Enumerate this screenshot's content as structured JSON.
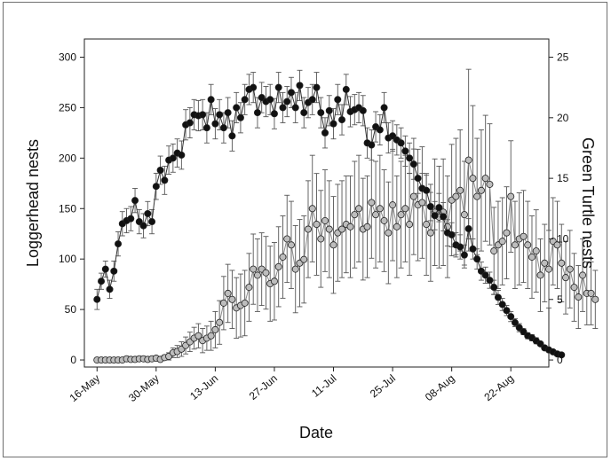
{
  "chart_data": {
    "type": "scatter",
    "xlabel": "Date",
    "ylabel_left": "Loggerhead nests",
    "ylabel_right": "Green Turtle nests",
    "x_ticks": [
      "16-May",
      "30-May",
      "13-Jun",
      "27-Jun",
      "11-Jul",
      "25-Jul",
      "08-Aug",
      "22-Aug"
    ],
    "y_left_ticks": [
      "0",
      "50",
      "100",
      "150",
      "200",
      "250",
      "300"
    ],
    "y_right_ticks": [
      "0",
      "5",
      "10",
      "15",
      "20",
      "25"
    ],
    "x_range_days_from_16_May": [
      -3,
      107
    ],
    "ylim_left": [
      -7,
      318
    ],
    "ylim_right": [
      -0.58,
      26.5
    ],
    "grid": false,
    "series": [
      {
        "axis": "left",
        "marker_color": "#111111",
        "line_color": "#333333",
        "points": [
          [
            0,
            60,
            10
          ],
          [
            1,
            78,
            8
          ],
          [
            2,
            90,
            8
          ],
          [
            3,
            70,
            9
          ],
          [
            4,
            88,
            10
          ],
          [
            5,
            115,
            12
          ],
          [
            6,
            135,
            12
          ],
          [
            7,
            138,
            12
          ],
          [
            8,
            140,
            12
          ],
          [
            9,
            158,
            12
          ],
          [
            10,
            137,
            12
          ],
          [
            11,
            133,
            12
          ],
          [
            12,
            145,
            12
          ],
          [
            13,
            137,
            12
          ],
          [
            14,
            172,
            13
          ],
          [
            15,
            188,
            14
          ],
          [
            16,
            178,
            14
          ],
          [
            17,
            198,
            14
          ],
          [
            18,
            200,
            14
          ],
          [
            19,
            205,
            14
          ],
          [
            20,
            203,
            14
          ],
          [
            21,
            233,
            15
          ],
          [
            22,
            235,
            15
          ],
          [
            23,
            243,
            15
          ],
          [
            24,
            242,
            15
          ],
          [
            25,
            243,
            15
          ],
          [
            26,
            230,
            15
          ],
          [
            27,
            258,
            15
          ],
          [
            28,
            234,
            15
          ],
          [
            29,
            243,
            15
          ],
          [
            30,
            230,
            15
          ],
          [
            31,
            245,
            15
          ],
          [
            32,
            222,
            15
          ],
          [
            33,
            250,
            15
          ],
          [
            34,
            240,
            15
          ],
          [
            35,
            258,
            15
          ],
          [
            36,
            268,
            15
          ],
          [
            37,
            270,
            15
          ],
          [
            38,
            245,
            15
          ],
          [
            39,
            260,
            15
          ],
          [
            40,
            256,
            15
          ],
          [
            41,
            258,
            15
          ],
          [
            42,
            244,
            15
          ],
          [
            43,
            270,
            15
          ],
          [
            44,
            250,
            15
          ],
          [
            45,
            256,
            15
          ],
          [
            46,
            265,
            15
          ],
          [
            47,
            250,
            15
          ],
          [
            48,
            272,
            15
          ],
          [
            49,
            245,
            15
          ],
          [
            50,
            255,
            15
          ],
          [
            51,
            258,
            15
          ],
          [
            52,
            270,
            15
          ],
          [
            53,
            245,
            15
          ],
          [
            54,
            225,
            15
          ],
          [
            55,
            247,
            15
          ],
          [
            56,
            234,
            15
          ],
          [
            57,
            258,
            15
          ],
          [
            58,
            238,
            15
          ],
          [
            59,
            268,
            15
          ],
          [
            60,
            246,
            15
          ],
          [
            61,
            248,
            15
          ],
          [
            62,
            250,
            15
          ],
          [
            63,
            247,
            15
          ],
          [
            64,
            215,
            15
          ],
          [
            65,
            213,
            15
          ],
          [
            66,
            231,
            15
          ],
          [
            67,
            228,
            15
          ],
          [
            68,
            250,
            15
          ],
          [
            69,
            220,
            15
          ],
          [
            70,
            222,
            15
          ],
          [
            71,
            218,
            15
          ],
          [
            72,
            215,
            15
          ],
          [
            73,
            207,
            15
          ],
          [
            74,
            200,
            15
          ],
          [
            75,
            194,
            15
          ],
          [
            76,
            180,
            15
          ],
          [
            77,
            170,
            15
          ],
          [
            78,
            168,
            15
          ],
          [
            79,
            152,
            14
          ],
          [
            80,
            143,
            14
          ],
          [
            81,
            151,
            14
          ],
          [
            82,
            142,
            14
          ],
          [
            83,
            126,
            13
          ],
          [
            84,
            124,
            12
          ],
          [
            85,
            114,
            12
          ],
          [
            86,
            112,
            12
          ],
          [
            87,
            104,
            10
          ],
          [
            88,
            130,
            10
          ],
          [
            89,
            110,
            10
          ],
          [
            90,
            100,
            10
          ],
          [
            91,
            88,
            9
          ],
          [
            92,
            84,
            8
          ],
          [
            93,
            79,
            8
          ],
          [
            94,
            72,
            7
          ],
          [
            95,
            62,
            7
          ],
          [
            96,
            55,
            6
          ],
          [
            97,
            49,
            5
          ],
          [
            98,
            43,
            5
          ],
          [
            99,
            37,
            4
          ],
          [
            100,
            32,
            4
          ],
          [
            101,
            28,
            3
          ],
          [
            102,
            24,
            3
          ],
          [
            103,
            22,
            3
          ],
          [
            104,
            19,
            3
          ],
          [
            105,
            16,
            2
          ],
          [
            106,
            12,
            2
          ],
          [
            107,
            10,
            2
          ],
          [
            108,
            8,
            2
          ],
          [
            109,
            6,
            2
          ],
          [
            110,
            5,
            1
          ]
        ]
      },
      {
        "axis": "right",
        "marker_color": "#bdbdbd",
        "line_color": "#8a8a8a",
        "points": [
          [
            0,
            0,
            0
          ],
          [
            1,
            0,
            0
          ],
          [
            2,
            0,
            0
          ],
          [
            3,
            0,
            0
          ],
          [
            4,
            0,
            0
          ],
          [
            5,
            0,
            0
          ],
          [
            6,
            0,
            0
          ],
          [
            7,
            0.1,
            0
          ],
          [
            8,
            0.05,
            0
          ],
          [
            9,
            0.05,
            0
          ],
          [
            10,
            0.1,
            0
          ],
          [
            11,
            0.1,
            0
          ],
          [
            12,
            0.05,
            0
          ],
          [
            13,
            0.1,
            0
          ],
          [
            14,
            0.15,
            0.1
          ],
          [
            15,
            0.05,
            0
          ],
          [
            16,
            0.2,
            0.2
          ],
          [
            17,
            0.3,
            0.3
          ],
          [
            18,
            0.6,
            0.4
          ],
          [
            19,
            0.7,
            0.5
          ],
          [
            20,
            0.9,
            0.6
          ],
          [
            21,
            1.2,
            0.7
          ],
          [
            22,
            1.5,
            0.8
          ],
          [
            23,
            1.8,
            0.9
          ],
          [
            24,
            2.0,
            1.0
          ],
          [
            25,
            1.6,
            1.0
          ],
          [
            26,
            1.8,
            1.0
          ],
          [
            27,
            2.0,
            1.2
          ],
          [
            28,
            2.5,
            1.5
          ],
          [
            29,
            3.1,
            1.8
          ],
          [
            30,
            4.7,
            2.2
          ],
          [
            31,
            5.5,
            2.4
          ],
          [
            32,
            5.0,
            2.4
          ],
          [
            33,
            4.3,
            2.5
          ],
          [
            34,
            4.5,
            2.6
          ],
          [
            35,
            4.7,
            2.7
          ],
          [
            36,
            6.0,
            2.8
          ],
          [
            37,
            7.5,
            2.9
          ],
          [
            38,
            7.0,
            3.0
          ],
          [
            39,
            7.5,
            3.0
          ],
          [
            40,
            7.2,
            3.0
          ],
          [
            41,
            6.3,
            3.1
          ],
          [
            42,
            6.5,
            3.2
          ],
          [
            43,
            7.7,
            3.3
          ],
          [
            44,
            8.5,
            3.4
          ],
          [
            45,
            10,
            3.6
          ],
          [
            46,
            9.5,
            3.6
          ],
          [
            47,
            7.5,
            3.6
          ],
          [
            48,
            8.0,
            3.6
          ],
          [
            49,
            8.3,
            3.6
          ],
          [
            50,
            10.8,
            4.0
          ],
          [
            51,
            12.5,
            4.4
          ],
          [
            52,
            11.2,
            4.2
          ],
          [
            53,
            10.0,
            4.0
          ],
          [
            54,
            11.5,
            4.2
          ],
          [
            55,
            10.8,
            4.0
          ],
          [
            56,
            9.5,
            4.0
          ],
          [
            57,
            10.5,
            4.0
          ],
          [
            58,
            10.8,
            4.0
          ],
          [
            59,
            11.2,
            4.0
          ],
          [
            60,
            11.0,
            4.2
          ],
          [
            61,
            12.0,
            4.4
          ],
          [
            62,
            12.5,
            4.4
          ],
          [
            63,
            10.8,
            4.2
          ],
          [
            64,
            11.0,
            4.2
          ],
          [
            65,
            13.0,
            4.6
          ],
          [
            66,
            12.0,
            4.4
          ],
          [
            67,
            12.5,
            4.4
          ],
          [
            68,
            11.5,
            4.2
          ],
          [
            69,
            10.5,
            4.2
          ],
          [
            70,
            12.8,
            4.6
          ],
          [
            71,
            11.0,
            4.2
          ],
          [
            72,
            12.0,
            4.4
          ],
          [
            73,
            12.5,
            4.4
          ],
          [
            74,
            11.2,
            4.2
          ],
          [
            75,
            13.5,
            4.8
          ],
          [
            76,
            12.8,
            4.6
          ],
          [
            77,
            13.0,
            4.6
          ],
          [
            78,
            11.2,
            4.2
          ],
          [
            79,
            10.5,
            4.0
          ],
          [
            80,
            12.2,
            4.4
          ],
          [
            81,
            11.8,
            4.2
          ],
          [
            82,
            12.2,
            4.4
          ],
          [
            83,
            11.0,
            4.2
          ],
          [
            84,
            13.2,
            4.6
          ],
          [
            85,
            13.5,
            4.8
          ],
          [
            86,
            14.0,
            5.0
          ],
          [
            87,
            12.0,
            4.4
          ],
          [
            88,
            16.5,
            7.5
          ],
          [
            89,
            15.0,
            6.0
          ],
          [
            90,
            13.5,
            4.8
          ],
          [
            91,
            14.0,
            5.0
          ],
          [
            92,
            15.0,
            5.2
          ],
          [
            93,
            14.5,
            5.0
          ],
          [
            94,
            9.0,
            3.6
          ],
          [
            95,
            9.5,
            3.6
          ],
          [
            96,
            9.8,
            3.6
          ],
          [
            97,
            10.5,
            3.8
          ],
          [
            98,
            13.5,
            4.6
          ],
          [
            99,
            9.5,
            3.6
          ],
          [
            100,
            10.0,
            3.8
          ],
          [
            101,
            10.2,
            3.8
          ],
          [
            102,
            9.5,
            3.6
          ],
          [
            103,
            8.5,
            3.4
          ],
          [
            104,
            9.0,
            3.4
          ],
          [
            105,
            7.0,
            3.0
          ],
          [
            106,
            8.0,
            3.2
          ],
          [
            107,
            7.5,
            3.2
          ],
          [
            108,
            9.8,
            3.6
          ],
          [
            109,
            9.5,
            3.6
          ],
          [
            110,
            8.0,
            3.2
          ],
          [
            111,
            6.8,
            3.0
          ],
          [
            112,
            7.5,
            3.2
          ],
          [
            113,
            6.0,
            2.8
          ],
          [
            114,
            5.2,
            2.6
          ],
          [
            115,
            7.0,
            3.0
          ],
          [
            116,
            5.5,
            2.6
          ],
          [
            117,
            5.5,
            2.6
          ],
          [
            118,
            5.0,
            2.4
          ]
        ]
      }
    ]
  }
}
